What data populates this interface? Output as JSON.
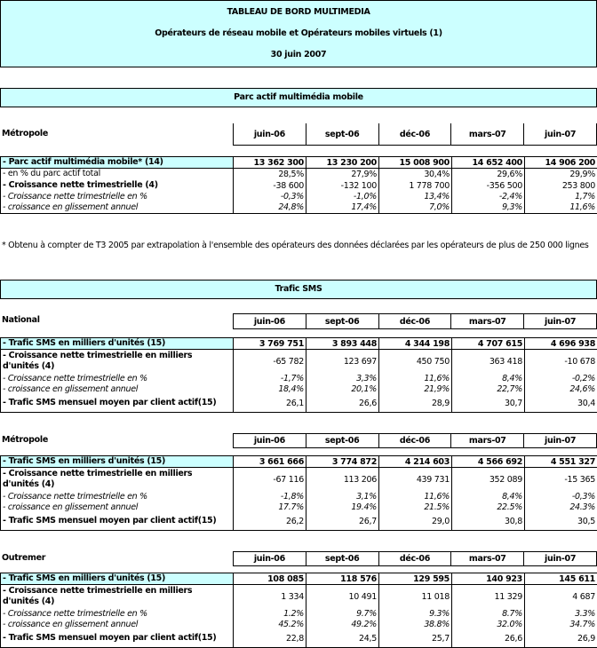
{
  "header": {
    "title": "TABLEAU DE BORD MULTIMEDIA",
    "subtitle": "Opérateurs de réseau mobile et Opérateurs mobiles virtuels (1)",
    "date": "30 juin 2007"
  },
  "columns": [
    "juin-06",
    "sept-06",
    "déc-06",
    "mars-07",
    "juin-07"
  ],
  "colors": {
    "highlight": "#ccffff",
    "border": "#000000"
  },
  "sections": [
    {
      "banner": "Parc actif multimédia mobile",
      "groups": [
        {
          "label": "Métropole",
          "rows": [
            {
              "label": "- Parc actif multimédia mobile* (14)",
              "style": "first",
              "values": [
                "13 362 300",
                "13 230 200",
                "15 008 900",
                "14 652 400",
                "14 906 200"
              ]
            },
            {
              "label": "- en % du parc actif total",
              "style": "normal",
              "values": [
                "28,5%",
                "27,9%",
                "30,4%",
                "29,6%",
                "29,9%"
              ]
            },
            {
              "label": "- Croissance nette trimestrielle (4)",
              "style": "bold",
              "values": [
                "-38 600",
                "-132 100",
                "1 778 700",
                "-356 500",
                "253 800"
              ]
            },
            {
              "label": "- Croissance nette trimestrielle en %",
              "style": "italic",
              "values": [
                "-0,3%",
                "-1,0%",
                "13,4%",
                "-2,4%",
                "1,7%"
              ]
            },
            {
              "label": "- croissance en glissement annuel",
              "style": "italic",
              "values": [
                "24,8%",
                "17,4%",
                "7,0%",
                "9,3%",
                "11,6%"
              ]
            }
          ]
        }
      ],
      "footnote": "* Obtenu à compter de T3 2005 par extrapolation à l'ensemble des opérateurs des données déclarées par les opérateurs de plus de 250 000 lignes"
    },
    {
      "banner": "Trafic SMS",
      "groups": [
        {
          "label": "National",
          "rows": [
            {
              "label": "- Trafic SMS en milliers d'unités (15)",
              "style": "first",
              "values": [
                "3 769 751",
                "3 893 448",
                "4 344 198",
                "4 707 615",
                "4 696 938"
              ]
            },
            {
              "label": "- Croissance nette trimestrielle en milliers d'unités (4)",
              "style": "bold",
              "values": [
                "-65 782",
                "123 697",
                "450 750",
                "363 418",
                "-10 678"
              ]
            },
            {
              "label": "- Croissance nette trimestrielle en %",
              "style": "italic",
              "values": [
                "-1,7%",
                "3,3%",
                "11,6%",
                "8,4%",
                "-0,2%"
              ]
            },
            {
              "label": "- croissance en glissement annuel",
              "style": "italic",
              "values": [
                "18,4%",
                "20,1%",
                "21,9%",
                "22,7%",
                "24,6%"
              ]
            },
            {
              "label": "- Trafic SMS mensuel moyen par client actif(15)",
              "style": "bold",
              "values": [
                "26,1",
                "26,6",
                "28,9",
                "30,7",
                "30,4"
              ]
            }
          ]
        },
        {
          "label": "Métropole",
          "rows": [
            {
              "label": "- Trafic SMS en milliers d'unités (15)",
              "style": "first",
              "values": [
                "3 661 666",
                "3 774 872",
                "4 214 603",
                "4 566 692",
                "4 551 327"
              ]
            },
            {
              "label": "- Croissance nette trimestrielle en milliers d'unités (4)",
              "style": "bold",
              "values": [
                "-67 116",
                "113 206",
                "439 731",
                "352 089",
                "-15 365"
              ]
            },
            {
              "label": "- Croissance nette trimestrielle en %",
              "style": "italic",
              "values": [
                "-1,8%",
                "3,1%",
                "11,6%",
                "8,4%",
                "-0,3%"
              ]
            },
            {
              "label": "- croissance en glissement annuel",
              "style": "italic",
              "values": [
                "17.7%",
                "19.4%",
                "21.5%",
                "22.5%",
                "24.3%"
              ]
            },
            {
              "label": "- Trafic SMS mensuel moyen par client actif(15)",
              "style": "bold",
              "values": [
                "26,2",
                "26,7",
                "29,0",
                "30,8",
                "30,5"
              ]
            }
          ]
        },
        {
          "label": "Outremer",
          "rows": [
            {
              "label": "- Trafic SMS en milliers d'unités (15)",
              "style": "first",
              "values": [
                "108 085",
                "118 576",
                "129 595",
                "140 923",
                "145 611"
              ]
            },
            {
              "label": "- Croissance nette trimestrielle en milliers d'unités (4)",
              "style": "bold",
              "values": [
                "1 334",
                "10 491",
                "11 018",
                "11 329",
                "4 687"
              ]
            },
            {
              "label": "- Croissance nette trimestrielle en %",
              "style": "italic",
              "values": [
                "1.2%",
                "9.7%",
                "9.3%",
                "8.7%",
                "3.3%"
              ]
            },
            {
              "label": "- croissance en glissement annuel",
              "style": "italic",
              "values": [
                "45.2%",
                "49.2%",
                "38.8%",
                "32.0%",
                "34.7%"
              ]
            },
            {
              "label": "- Trafic SMS mensuel moyen par client actif(15)",
              "style": "bold",
              "values": [
                "22,8",
                "24,5",
                "25,7",
                "26,6",
                "26,9"
              ]
            }
          ]
        }
      ]
    }
  ]
}
